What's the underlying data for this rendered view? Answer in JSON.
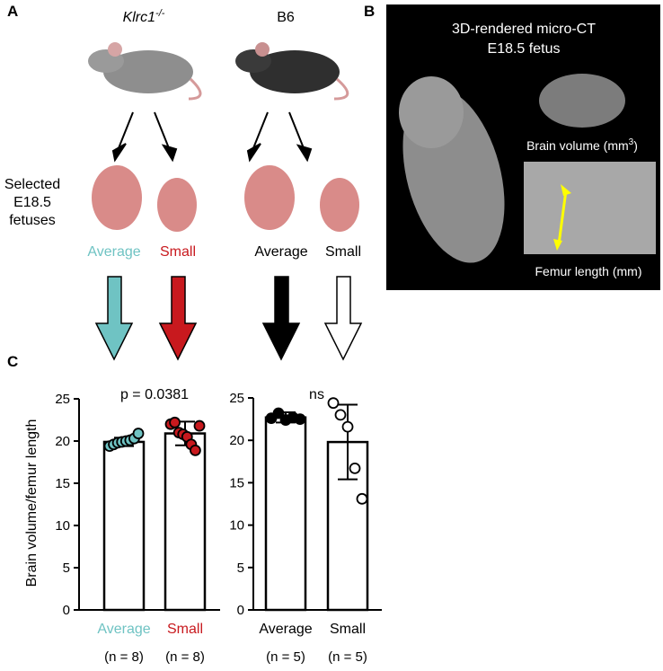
{
  "panel_a": {
    "label": "A",
    "genotype_1": "Klrc1",
    "genotype_1_sup": "-/-",
    "genotype_2": "B6",
    "row_label": [
      "Selected",
      "E18.5",
      "fetuses"
    ],
    "groups": [
      "Average",
      "Small",
      "Average",
      "Small"
    ],
    "group_colors": [
      "#6fc3c3",
      "#c8191e",
      "#000000",
      "#000000"
    ]
  },
  "panel_b": {
    "label": "B",
    "title": [
      "3D-rendered micro-CT",
      "E18.5 fetus"
    ],
    "brain_label": "Brain volume (mm",
    "brain_label_sup": "3",
    "brain_label_end": ")",
    "femur_label": "Femur length (mm)"
  },
  "panel_c": {
    "label": "C"
  },
  "chart_data": [
    {
      "type": "bar",
      "ylabel": "Brain volume/femur length",
      "annotation": "p = 0.0381",
      "categories": [
        "Average",
        "Small"
      ],
      "category_colors": [
        "#6fc3c3",
        "#c8191e"
      ],
      "n_labels": [
        "(n = 8)",
        "(n = 8)"
      ],
      "values": [
        19.9,
        20.9
      ],
      "errors": [
        0.5,
        1.4
      ],
      "points": [
        [
          19.4,
          19.6,
          19.8,
          19.9,
          20.0,
          20.1,
          20.3,
          20.9
        ],
        [
          22.0,
          22.2,
          21.0,
          20.8,
          20.5,
          19.6,
          18.9,
          21.8
        ]
      ],
      "point_colors": [
        "#6fc3c3",
        "#c8191e"
      ],
      "ylim": [
        0,
        25
      ],
      "yticks": [
        0,
        5,
        10,
        15,
        20,
        25
      ]
    },
    {
      "type": "bar",
      "annotation": "ns",
      "categories": [
        "Average",
        "Small"
      ],
      "category_colors": [
        "#000000",
        "#000000"
      ],
      "n_labels": [
        "(n = 5)",
        "(n = 5)"
      ],
      "values": [
        22.7,
        19.8
      ],
      "errors": [
        0.6,
        4.4
      ],
      "points": [
        [
          22.6,
          23.2,
          22.4,
          22.7,
          22.5
        ],
        [
          24.4,
          23.0,
          21.6,
          16.7,
          13.1
        ]
      ],
      "point_colors": [
        "#000000",
        "#ffffff"
      ],
      "ylim": [
        0,
        25
      ],
      "yticks": [
        0,
        5,
        10,
        15,
        20,
        25
      ]
    }
  ]
}
